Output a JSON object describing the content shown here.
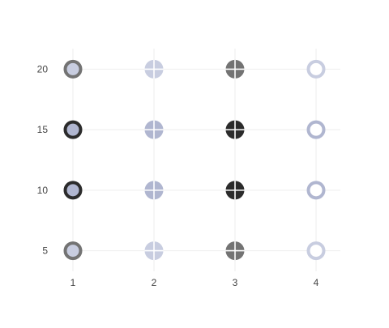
{
  "chart_data": {
    "type": "scatter",
    "title": "",
    "xlabel": "",
    "ylabel": "",
    "x_ticks": [
      1,
      2,
      3,
      4
    ],
    "y_ticks": [
      5,
      10,
      15,
      20
    ],
    "xlim": [
      0.9,
      4.3
    ],
    "ylim": [
      3.3,
      21.7
    ],
    "grid": true,
    "points": [
      {
        "x": 1,
        "y": 20,
        "symbol": "circle",
        "outer_color": "#737373",
        "inner_color": "#c8cde0"
      },
      {
        "x": 1,
        "y": 15,
        "symbol": "circle",
        "outer_color": "#2b2b2b",
        "inner_color": "#b0b6d0"
      },
      {
        "x": 1,
        "y": 10,
        "symbol": "circle",
        "outer_color": "#2b2b2b",
        "inner_color": "#b0b6d0"
      },
      {
        "x": 1,
        "y": 5,
        "symbol": "circle",
        "outer_color": "#737373",
        "inner_color": "#c8cde0"
      },
      {
        "x": 2,
        "y": 20,
        "symbol": "circle-cross",
        "outer_color": "#c8cde0",
        "inner_color": "#c8cde0"
      },
      {
        "x": 2,
        "y": 15,
        "symbol": "circle-cross",
        "outer_color": "#b0b6d0",
        "inner_color": "#b0b6d0"
      },
      {
        "x": 2,
        "y": 10,
        "symbol": "circle-cross",
        "outer_color": "#b0b6d0",
        "inner_color": "#b0b6d0"
      },
      {
        "x": 2,
        "y": 5,
        "symbol": "circle-cross",
        "outer_color": "#c8cde0",
        "inner_color": "#c8cde0"
      },
      {
        "x": 3,
        "y": 20,
        "symbol": "circle-cross",
        "outer_color": "#737373",
        "inner_color": "#737373"
      },
      {
        "x": 3,
        "y": 15,
        "symbol": "circle-cross",
        "outer_color": "#2b2b2b",
        "inner_color": "#2b2b2b"
      },
      {
        "x": 3,
        "y": 10,
        "symbol": "circle-cross",
        "outer_color": "#2b2b2b",
        "inner_color": "#2b2b2b"
      },
      {
        "x": 3,
        "y": 5,
        "symbol": "circle-cross",
        "outer_color": "#737373",
        "inner_color": "#737373"
      },
      {
        "x": 4,
        "y": 20,
        "symbol": "circle-open",
        "outer_color": "#c8cde0",
        "inner_color": "#ffffff"
      },
      {
        "x": 4,
        "y": 15,
        "symbol": "circle-open",
        "outer_color": "#b0b6d0",
        "inner_color": "#ffffff"
      },
      {
        "x": 4,
        "y": 10,
        "symbol": "circle-open",
        "outer_color": "#b0b6d0",
        "inner_color": "#ffffff"
      },
      {
        "x": 4,
        "y": 5,
        "symbol": "circle-open",
        "outer_color": "#c8cde0",
        "inner_color": "#ffffff"
      }
    ]
  }
}
